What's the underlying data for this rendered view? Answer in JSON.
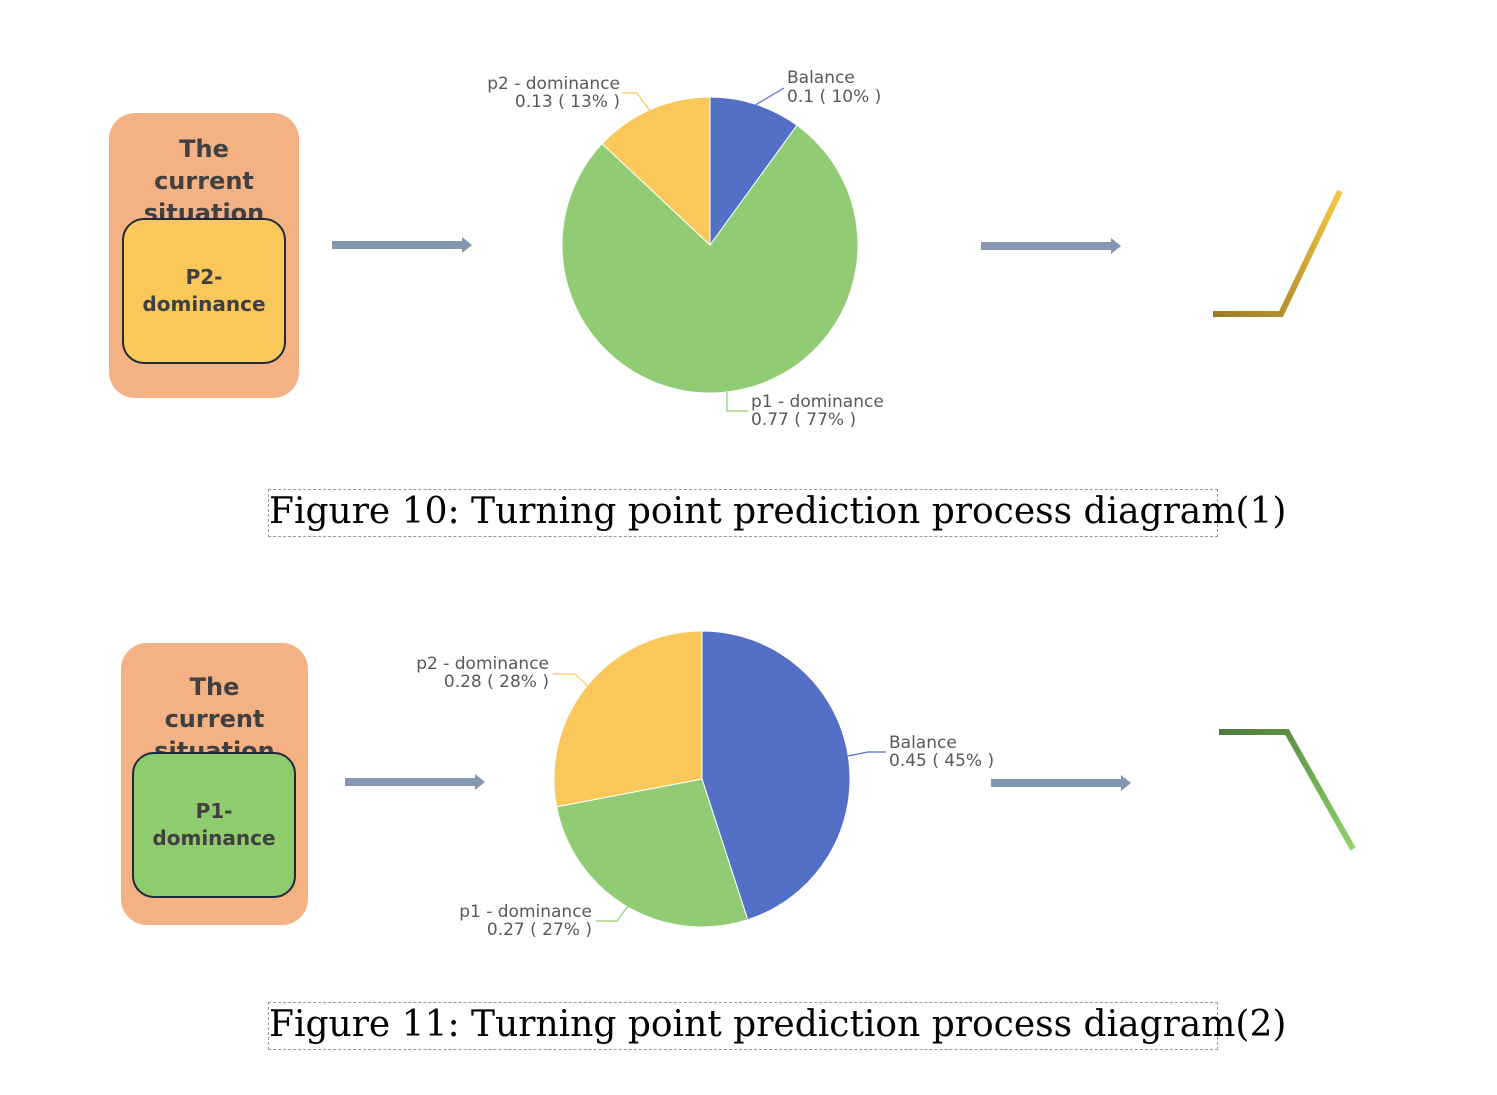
{
  "figures": [
    {
      "panel_title": "The current situation",
      "state_label": "P2-\ndominance",
      "state_color": "#f9c75a",
      "pie": {
        "type": "pie",
        "slices": [
          {
            "name": "Balance",
            "value": 0.1,
            "label_value": "0.1 ( 10% )",
            "color": "#5470c6"
          },
          {
            "name": "p1 - dominance",
            "value": 0.77,
            "label_value": "0.77 ( 77% )",
            "color": "#91cc75"
          },
          {
            "name": "p2 - dominance",
            "value": 0.13,
            "label_value": "0.13 ( 13% )",
            "color": "#f9c75a"
          }
        ]
      },
      "trend": "up",
      "trend_colors": [
        "#9e7a23",
        "#f5c842"
      ],
      "caption": "Figure 10: Turning point prediction process diagram(1)"
    },
    {
      "panel_title": "The current situation",
      "state_label": "P1-\ndominance",
      "state_color": "#8fcc6e",
      "pie": {
        "type": "pie",
        "slices": [
          {
            "name": "Balance",
            "value": 0.45,
            "label_value": "0.45 ( 45% )",
            "color": "#5470c6"
          },
          {
            "name": "p1 - dominance",
            "value": 0.27,
            "label_value": "0.27 ( 27% )",
            "color": "#91cc75"
          },
          {
            "name": "p2 - dominance",
            "value": 0.28,
            "label_value": "0.28 ( 28% )",
            "color": "#f9c75a"
          }
        ]
      },
      "trend": "down",
      "trend_colors": [
        "#4e7a3a",
        "#8fd46c"
      ],
      "caption": "Figure 11: Turning point prediction process diagram(2)"
    }
  ],
  "arrow_color": "#8497b0"
}
